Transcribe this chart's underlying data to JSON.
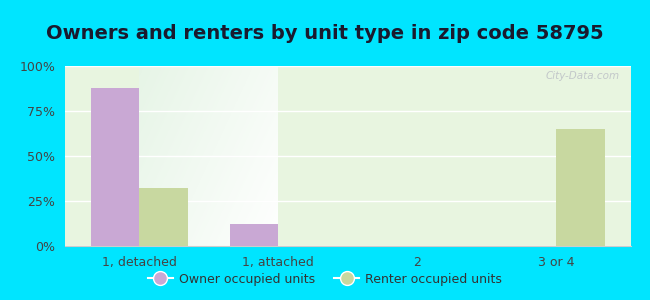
{
  "title": "Owners and renters by unit type in zip code 58795",
  "categories": [
    "1, detached",
    "1, attached",
    "2",
    "3 or 4"
  ],
  "owner_values": [
    88,
    12,
    0,
    0
  ],
  "renter_values": [
    32,
    0,
    0,
    65
  ],
  "owner_color": "#c9a8d4",
  "renter_color": "#c8d8a0",
  "outer_background": "#00e5ff",
  "ylim": [
    0,
    100
  ],
  "yticks": [
    0,
    25,
    50,
    75,
    100
  ],
  "ytick_labels": [
    "0%",
    "25%",
    "50%",
    "75%",
    "100%"
  ],
  "legend_owner": "Owner occupied units",
  "legend_renter": "Renter occupied units",
  "bar_width": 0.35,
  "title_fontsize": 14,
  "tick_fontsize": 9,
  "legend_fontsize": 9
}
